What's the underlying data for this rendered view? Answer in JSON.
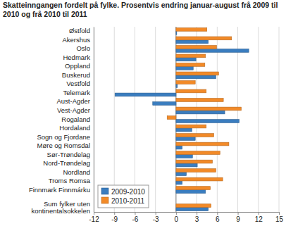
{
  "chart_data": {
    "type": "bar",
    "orientation": "horizontal",
    "title": "Skatteinngangen fordelt på fylke. Prosentvis endring januar-august frå 2009 til 2010 og frå 2010 til 2011",
    "categories": [
      "Østfold",
      "Akershus",
      "Oslo",
      "Hedmark",
      "Oppland",
      "Buskerud",
      "Vestfold",
      "Telemark",
      "Aust-Agder",
      "Vest-Agder",
      "Rogaland",
      "Hordaland",
      "Sogn og Fjordane",
      "Møre og Romsdal",
      "Sør-Trøndelag",
      "Nord-Trøndelag",
      "Nordland",
      "Troms Romsa",
      "Finnmark Finnmárku",
      null,
      "Sum fylker uten kontinentalsokkelen"
    ],
    "series": [
      {
        "name": "2009-2010",
        "color": "#3a7dbf",
        "values": [
          0.1,
          4.7,
          10.6,
          2.9,
          2.5,
          5.8,
          0.2,
          -8.9,
          -3.4,
          7.1,
          9.2,
          2.3,
          2.8,
          0.9,
          2.4,
          3.1,
          1.5,
          0.9,
          4.3,
          null,
          4.7
        ]
      },
      {
        "name": "2010-2011",
        "color": "#f28a28",
        "values": [
          4.5,
          8.1,
          5.9,
          4.3,
          4.2,
          6.2,
          2.8,
          4.4,
          6.9,
          9.5,
          -1.3,
          4.4,
          5.5,
          7.7,
          6.4,
          5.3,
          5.8,
          6.8,
          5.0,
          null,
          5.1
        ]
      }
    ],
    "xlim": [
      -12,
      15
    ],
    "xticks": [
      -12,
      -9,
      -6,
      -3,
      0,
      3,
      6,
      9,
      12,
      15
    ],
    "grid": true,
    "legend": "lower left"
  }
}
